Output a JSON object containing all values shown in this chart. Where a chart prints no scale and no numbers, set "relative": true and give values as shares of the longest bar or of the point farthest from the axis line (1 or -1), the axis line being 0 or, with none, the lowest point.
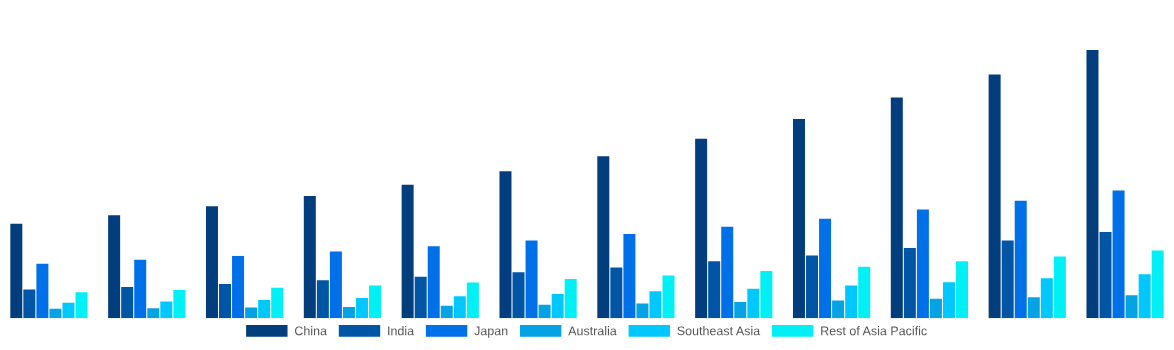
{
  "chart_data": {
    "type": "bar",
    "relative": true,
    "legend": "bottom",
    "grid": false,
    "categories": [
      null,
      null,
      null,
      null,
      null,
      null,
      null,
      null,
      null,
      null,
      null,
      null
    ],
    "series": [
      {
        "name": "China",
        "color": "#023e7d",
        "values": [
          0.352,
          0.384,
          0.417,
          0.456,
          0.498,
          0.548,
          0.604,
          0.669,
          0.743,
          0.823,
          0.909,
          1.0
        ]
      },
      {
        "name": "India",
        "color": "#0055a5",
        "values": [
          0.107,
          0.116,
          0.127,
          0.141,
          0.154,
          0.171,
          0.189,
          0.212,
          0.234,
          0.262,
          0.29,
          0.321
        ]
      },
      {
        "name": "Japan",
        "color": "#0070e8",
        "values": [
          0.203,
          0.218,
          0.232,
          0.249,
          0.268,
          0.29,
          0.314,
          0.341,
          0.371,
          0.405,
          0.438,
          0.476
        ]
      },
      {
        "name": "Australia",
        "color": "#05a3e3",
        "values": [
          0.035,
          0.037,
          0.04,
          0.042,
          0.046,
          0.05,
          0.055,
          0.06,
          0.066,
          0.072,
          0.078,
          0.085
        ]
      },
      {
        "name": "Southeast Asia",
        "color": "#00c8ff",
        "values": [
          0.057,
          0.062,
          0.068,
          0.075,
          0.082,
          0.09,
          0.1,
          0.11,
          0.122,
          0.134,
          0.149,
          0.164
        ]
      },
      {
        "name": "Rest of Asia Pacific",
        "color": "#00f0f5",
        "values": [
          0.097,
          0.105,
          0.113,
          0.122,
          0.133,
          0.146,
          0.159,
          0.176,
          0.192,
          0.212,
          0.23,
          0.252
        ]
      }
    ]
  }
}
